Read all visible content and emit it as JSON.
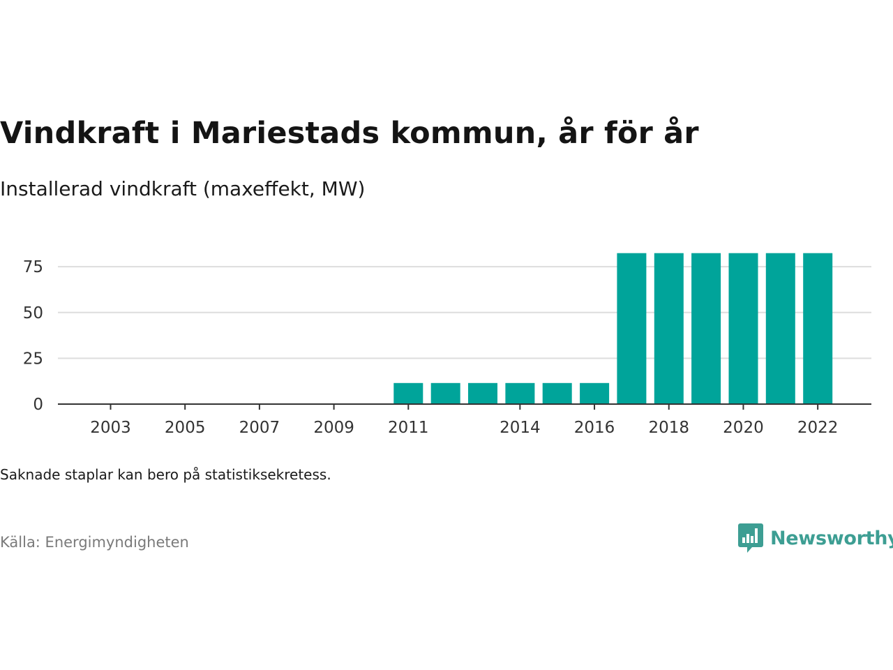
{
  "title": "Vindkraft i Mariestads kommun, år för år",
  "subtitle": "Installerad vindkraft (maxeffekt, MW)",
  "note": "Saknade staplar kan bero på statistiksekretess.",
  "source": "Källa: Energimyndigheten",
  "brand": {
    "name": "Newsworthy",
    "icon": "newsworthy-logo-icon",
    "color": "#3d9e93"
  },
  "chart_data": {
    "type": "bar",
    "categories": [
      "2003",
      "2004",
      "2005",
      "2006",
      "2007",
      "2008",
      "2009",
      "2010",
      "2011",
      "2012",
      "2013",
      "2014",
      "2015",
      "2016",
      "2017",
      "2018",
      "2019",
      "2020",
      "2021",
      "2022"
    ],
    "values": [
      0,
      0,
      0,
      0,
      0,
      0,
      0,
      0,
      11.5,
      11.5,
      11.5,
      11.5,
      11.5,
      11.5,
      82.4,
      82.4,
      82.4,
      82.4,
      82.4,
      82.4
    ],
    "x_tick_labels": [
      "2003",
      "2005",
      "2007",
      "2009",
      "2011",
      "2014",
      "2016",
      "2018",
      "2020",
      "2022"
    ],
    "y_ticks": [
      0,
      25,
      50,
      75
    ],
    "ylim": [
      0,
      82.4
    ],
    "xlabel": "",
    "ylabel": "",
    "grid": true,
    "bar_color": "#00a49a"
  }
}
